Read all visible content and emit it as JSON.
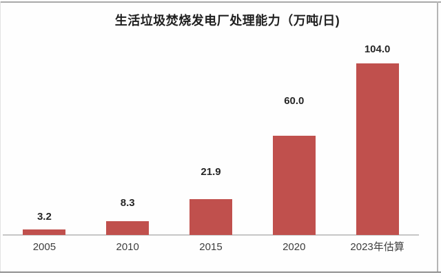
{
  "chart_data": {
    "type": "bar",
    "title": "生活垃圾焚烧发电厂处理能力（万吨/日)",
    "categories": [
      "2005",
      "2010",
      "2015",
      "2020",
      "2023年估算"
    ],
    "values": [
      3.2,
      8.3,
      21.9,
      60.0,
      104.0
    ],
    "value_labels": [
      "3.2",
      "8.3",
      "21.9",
      "60.0",
      "104.0"
    ],
    "xlabel": "",
    "ylabel": "",
    "ylim": [
      0,
      110
    ],
    "grid": false,
    "legend": "none",
    "bar_color": "#c0504d",
    "axis_line_color": "#c6c6c6",
    "title_color": "#1f1f1f",
    "value_label_color": "#262626",
    "tick_label_color": "#3d3d3d"
  }
}
